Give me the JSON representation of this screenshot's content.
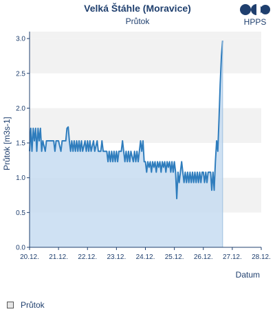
{
  "header": {
    "title": "Velká Štáhle (Moravice)",
    "subtitle": "Průtok",
    "logo_text": "HPPS"
  },
  "legend": {
    "label": "Průtok"
  },
  "colors": {
    "line": "#2f7dbd",
    "fill": "#c7dcf1",
    "band": "#f2f2f2",
    "axis": "#1f3f6e",
    "text": "#1f3f6e"
  },
  "chart_data": {
    "type": "area",
    "title": "Velká Štáhle (Moravice)",
    "subtitle": "Průtok",
    "xlabel": "Datum",
    "ylabel": "Průtok [m3s-1]",
    "xlim": [
      "2023-12-20",
      "2023-12-28"
    ],
    "ylim": [
      0,
      3.0
    ],
    "x_tick_labels": [
      "20.12.",
      "21.12.",
      "22.12.",
      "23.12.",
      "24.12.",
      "25.12.",
      "26.12.",
      "27.12.",
      "28.12."
    ],
    "y_ticks": [
      0.0,
      0.5,
      1.0,
      1.5,
      2.0,
      2.5,
      3.0
    ],
    "y_tick_labels": [
      "0.0",
      "0.5",
      "1.0",
      "1.5",
      "2.0",
      "2.5",
      "3.0"
    ],
    "grid": "alternating horizontal bands",
    "legend_position": "bottom-left",
    "series": [
      {
        "name": "Průtok",
        "points": [
          [
            "2023-12-20T00:00",
            1.38
          ],
          [
            "2023-12-20T01:00",
            1.71
          ],
          [
            "2023-12-20T02:00",
            1.38
          ],
          [
            "2023-12-20T03:00",
            1.71
          ],
          [
            "2023-12-20T04:00",
            1.53
          ],
          [
            "2023-12-20T05:00",
            1.71
          ],
          [
            "2023-12-20T06:00",
            1.38
          ],
          [
            "2023-12-20T07:00",
            1.71
          ],
          [
            "2023-12-20T08:00",
            1.53
          ],
          [
            "2023-12-20T09:00",
            1.71
          ],
          [
            "2023-12-20T10:00",
            1.38
          ],
          [
            "2023-12-20T11:00",
            1.53
          ],
          [
            "2023-12-20T13:00",
            1.38
          ],
          [
            "2023-12-20T14:00",
            1.53
          ],
          [
            "2023-12-20T20:00",
            1.53
          ],
          [
            "2023-12-20T21:00",
            1.38
          ],
          [
            "2023-12-20T22:00",
            1.53
          ],
          [
            "2023-12-21T00:00",
            1.53
          ],
          [
            "2023-12-21T02:00",
            1.38
          ],
          [
            "2023-12-21T03:00",
            1.53
          ],
          [
            "2023-12-21T06:00",
            1.53
          ],
          [
            "2023-12-21T07:00",
            1.71
          ],
          [
            "2023-12-21T08:00",
            1.73
          ],
          [
            "2023-12-21T09:00",
            1.53
          ],
          [
            "2023-12-21T10:00",
            1.38
          ],
          [
            "2023-12-21T11:00",
            1.53
          ],
          [
            "2023-12-21T12:00",
            1.38
          ],
          [
            "2023-12-21T13:00",
            1.53
          ],
          [
            "2023-12-21T14:00",
            1.38
          ],
          [
            "2023-12-21T15:00",
            1.53
          ],
          [
            "2023-12-21T16:00",
            1.38
          ],
          [
            "2023-12-21T17:00",
            1.53
          ],
          [
            "2023-12-21T18:00",
            1.38
          ],
          [
            "2023-12-21T19:00",
            1.53
          ],
          [
            "2023-12-21T20:00",
            1.38
          ],
          [
            "2023-12-21T22:00",
            1.53
          ],
          [
            "2023-12-21T23:00",
            1.38
          ],
          [
            "2023-12-22T00:00",
            1.53
          ],
          [
            "2023-12-22T01:00",
            1.38
          ],
          [
            "2023-12-22T02:00",
            1.53
          ],
          [
            "2023-12-22T03:00",
            1.38
          ],
          [
            "2023-12-22T05:00",
            1.53
          ],
          [
            "2023-12-22T06:00",
            1.38
          ],
          [
            "2023-12-22T08:00",
            1.53
          ],
          [
            "2023-12-22T09:00",
            1.38
          ],
          [
            "2023-12-22T11:00",
            1.38
          ],
          [
            "2023-12-22T12:00",
            1.53
          ],
          [
            "2023-12-22T13:00",
            1.38
          ],
          [
            "2023-12-22T16:00",
            1.38
          ],
          [
            "2023-12-22T17:00",
            1.23
          ],
          [
            "2023-12-22T18:00",
            1.38
          ],
          [
            "2023-12-22T19:00",
            1.23
          ],
          [
            "2023-12-22T20:00",
            1.38
          ],
          [
            "2023-12-22T21:00",
            1.23
          ],
          [
            "2023-12-22T22:00",
            1.38
          ],
          [
            "2023-12-22T23:00",
            1.23
          ],
          [
            "2023-12-23T00:00",
            1.38
          ],
          [
            "2023-12-23T01:00",
            1.23
          ],
          [
            "2023-12-23T02:00",
            1.38
          ],
          [
            "2023-12-23T04:00",
            1.38
          ],
          [
            "2023-12-23T05:00",
            1.53
          ],
          [
            "2023-12-23T06:00",
            1.38
          ],
          [
            "2023-12-23T07:00",
            1.23
          ],
          [
            "2023-12-23T08:00",
            1.38
          ],
          [
            "2023-12-23T09:00",
            1.23
          ],
          [
            "2023-12-23T10:00",
            1.38
          ],
          [
            "2023-12-23T11:00",
            1.23
          ],
          [
            "2023-12-23T12:00",
            1.38
          ],
          [
            "2023-12-23T14:00",
            1.23
          ],
          [
            "2023-12-23T15:00",
            1.38
          ],
          [
            "2023-12-23T16:00",
            1.23
          ],
          [
            "2023-12-23T17:00",
            1.38
          ],
          [
            "2023-12-23T18:00",
            1.23
          ],
          [
            "2023-12-23T19:00",
            1.38
          ],
          [
            "2023-12-23T20:00",
            1.53
          ],
          [
            "2023-12-23T21:00",
            1.38
          ],
          [
            "2023-12-23T22:00",
            1.53
          ],
          [
            "2023-12-23T23:00",
            1.23
          ],
          [
            "2023-12-24T00:00",
            1.23
          ],
          [
            "2023-12-24T01:00",
            1.08
          ],
          [
            "2023-12-24T02:00",
            1.23
          ],
          [
            "2023-12-24T03:00",
            1.15
          ],
          [
            "2023-12-24T04:00",
            1.23
          ],
          [
            "2023-12-24T05:00",
            1.08
          ],
          [
            "2023-12-24T06:00",
            1.23
          ],
          [
            "2023-12-24T07:00",
            1.15
          ],
          [
            "2023-12-24T08:00",
            1.23
          ],
          [
            "2023-12-24T09:00",
            1.08
          ],
          [
            "2023-12-24T10:00",
            1.23
          ],
          [
            "2023-12-24T11:00",
            1.15
          ],
          [
            "2023-12-24T12:00",
            1.23
          ],
          [
            "2023-12-24T13:00",
            1.08
          ],
          [
            "2023-12-24T14:00",
            1.23
          ],
          [
            "2023-12-24T15:00",
            1.15
          ],
          [
            "2023-12-24T16:00",
            1.23
          ],
          [
            "2023-12-24T17:00",
            1.08
          ],
          [
            "2023-12-24T18:00",
            1.23
          ],
          [
            "2023-12-24T19:00",
            1.15
          ],
          [
            "2023-12-24T20:00",
            1.23
          ],
          [
            "2023-12-24T21:00",
            1.08
          ],
          [
            "2023-12-24T22:00",
            1.23
          ],
          [
            "2023-12-24T23:00",
            1.08
          ],
          [
            "2023-12-25T00:00",
            1.23
          ],
          [
            "2023-12-25T01:00",
            1.08
          ],
          [
            "2023-12-25T02:00",
            0.7
          ],
          [
            "2023-12-25T03:00",
            1.08
          ],
          [
            "2023-12-25T04:00",
            0.93
          ],
          [
            "2023-12-25T05:00",
            1.08
          ],
          [
            "2023-12-25T06:00",
            1.23
          ],
          [
            "2023-12-25T07:00",
            1.08
          ],
          [
            "2023-12-25T08:00",
            0.93
          ],
          [
            "2023-12-25T09:00",
            1.08
          ],
          [
            "2023-12-25T10:00",
            0.93
          ],
          [
            "2023-12-25T11:00",
            1.08
          ],
          [
            "2023-12-25T12:00",
            0.93
          ],
          [
            "2023-12-25T13:00",
            1.08
          ],
          [
            "2023-12-25T14:00",
            0.93
          ],
          [
            "2023-12-25T15:00",
            1.08
          ],
          [
            "2023-12-25T16:00",
            0.93
          ],
          [
            "2023-12-25T17:00",
            1.08
          ],
          [
            "2023-12-25T18:00",
            0.93
          ],
          [
            "2023-12-25T19:00",
            1.08
          ],
          [
            "2023-12-25T20:00",
            0.93
          ],
          [
            "2023-12-25T21:00",
            1.08
          ],
          [
            "2023-12-25T22:00",
            0.93
          ],
          [
            "2023-12-25T23:00",
            1.08
          ],
          [
            "2023-12-26T00:00",
            1.08
          ],
          [
            "2023-12-26T01:00",
            0.93
          ],
          [
            "2023-12-26T02:00",
            1.08
          ],
          [
            "2023-12-26T03:00",
            0.93
          ],
          [
            "2023-12-26T04:00",
            1.08
          ],
          [
            "2023-12-26T06:00",
            1.08
          ],
          [
            "2023-12-26T07:00",
            0.82
          ],
          [
            "2023-12-26T08:00",
            1.08
          ],
          [
            "2023-12-26T09:00",
            0.82
          ],
          [
            "2023-12-26T10:00",
            1.23
          ],
          [
            "2023-12-26T11:00",
            1.53
          ],
          [
            "2023-12-26T12:00",
            1.38
          ],
          [
            "2023-12-26T13:00",
            1.85
          ],
          [
            "2023-12-26T14:00",
            2.35
          ],
          [
            "2023-12-26T15:00",
            2.75
          ],
          [
            "2023-12-26T16:00",
            2.97
          ]
        ]
      }
    ]
  }
}
